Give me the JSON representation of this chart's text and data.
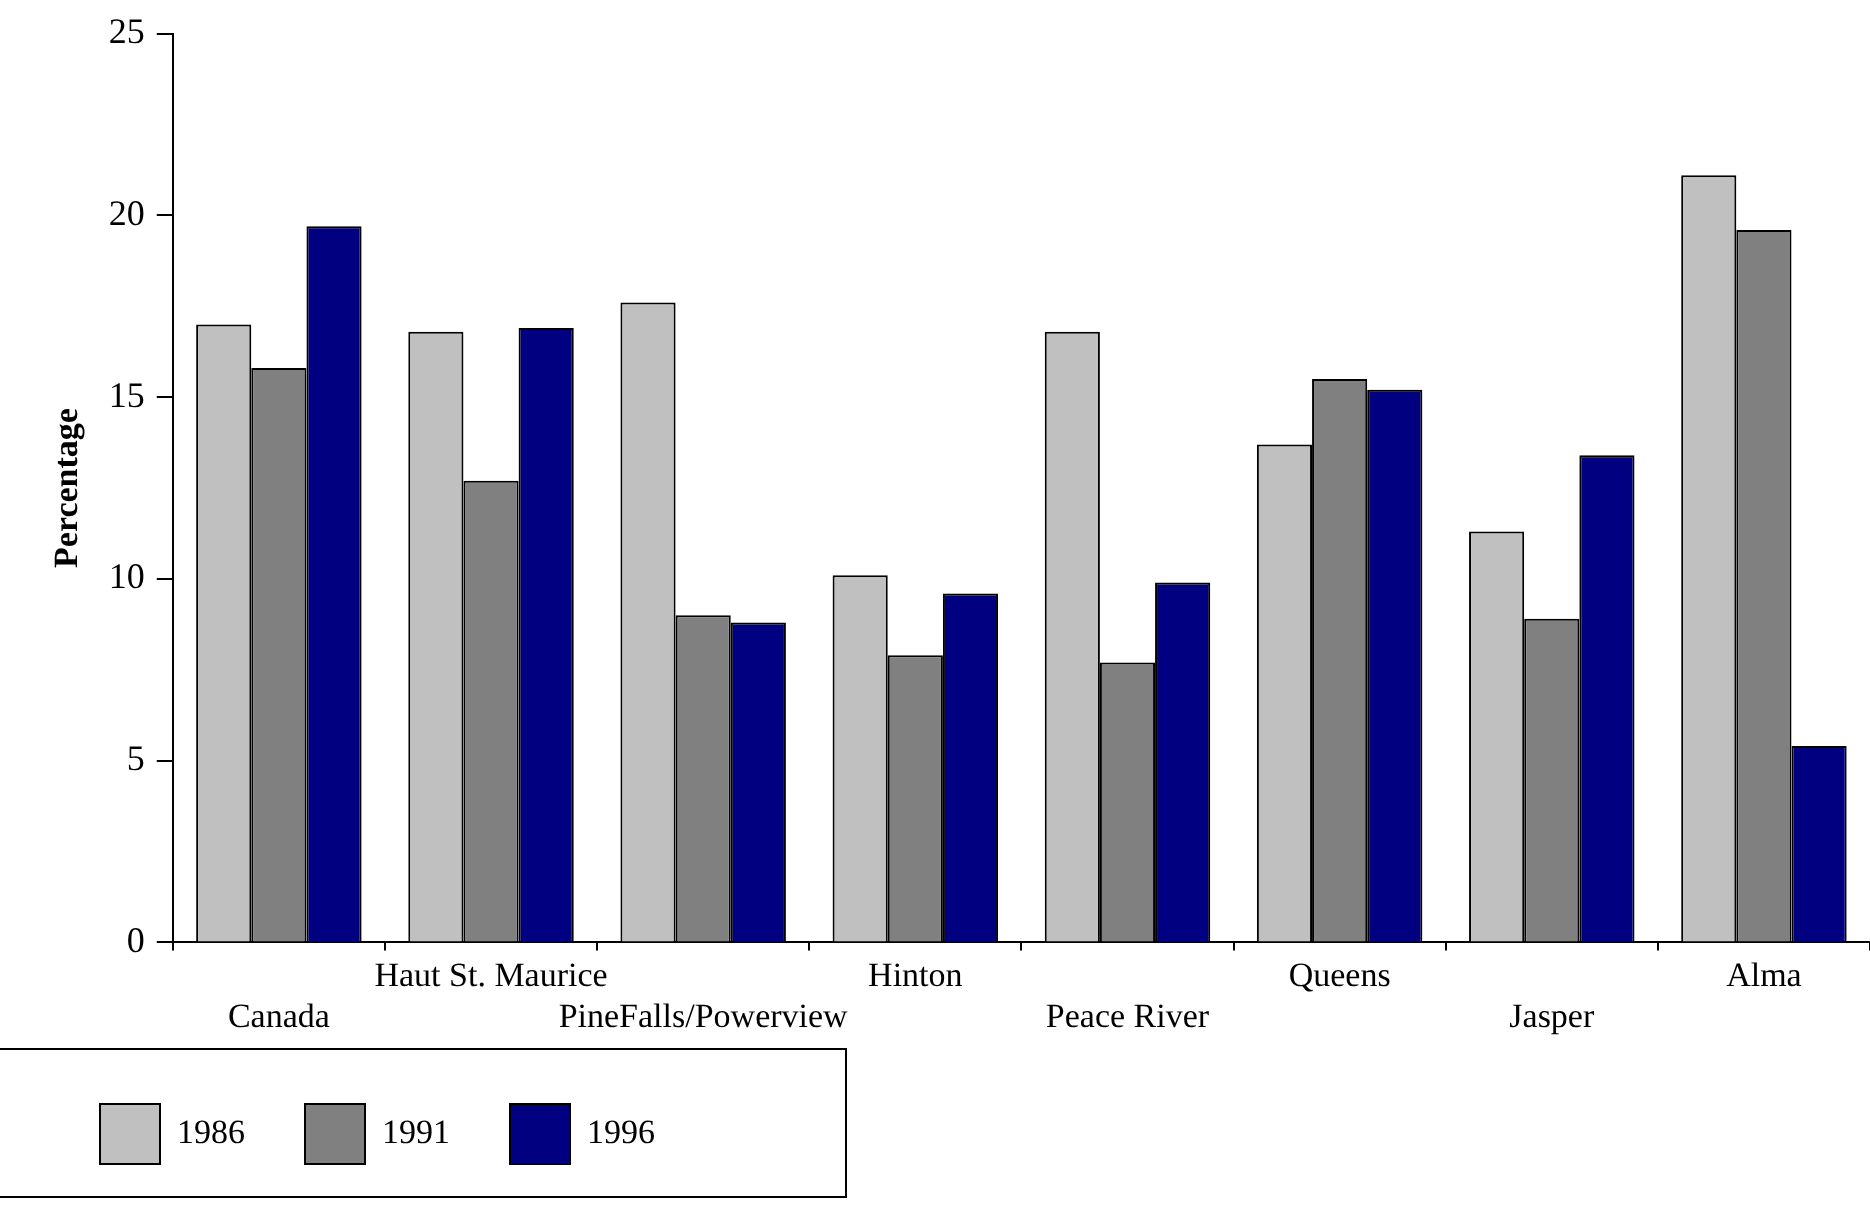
{
  "chart_data": {
    "type": "bar",
    "ylabel": "Percentage",
    "categories": [
      "Canada",
      "Haut St. Maurice",
      "PineFalls/Powerview",
      "Hinton",
      "Peace River",
      "Queens",
      "Jasper",
      "Alma"
    ],
    "series": [
      {
        "name": "1986",
        "color": "#c0c0c0",
        "values": [
          17.0,
          16.8,
          17.6,
          10.1,
          16.8,
          13.7,
          11.3,
          21.1
        ]
      },
      {
        "name": "1991",
        "color": "#808080",
        "values": [
          15.8,
          12.7,
          9.0,
          7.9,
          7.7,
          15.5,
          8.9,
          19.6
        ]
      },
      {
        "name": "1996",
        "color": "#000080",
        "values": [
          19.7,
          16.9,
          8.8,
          9.6,
          9.9,
          15.2,
          13.4,
          5.4
        ]
      }
    ],
    "ylim": [
      0,
      25
    ],
    "yticks": [
      0,
      5,
      10,
      15,
      20,
      25
    ],
    "grid": false,
    "legend": "bottom left"
  }
}
